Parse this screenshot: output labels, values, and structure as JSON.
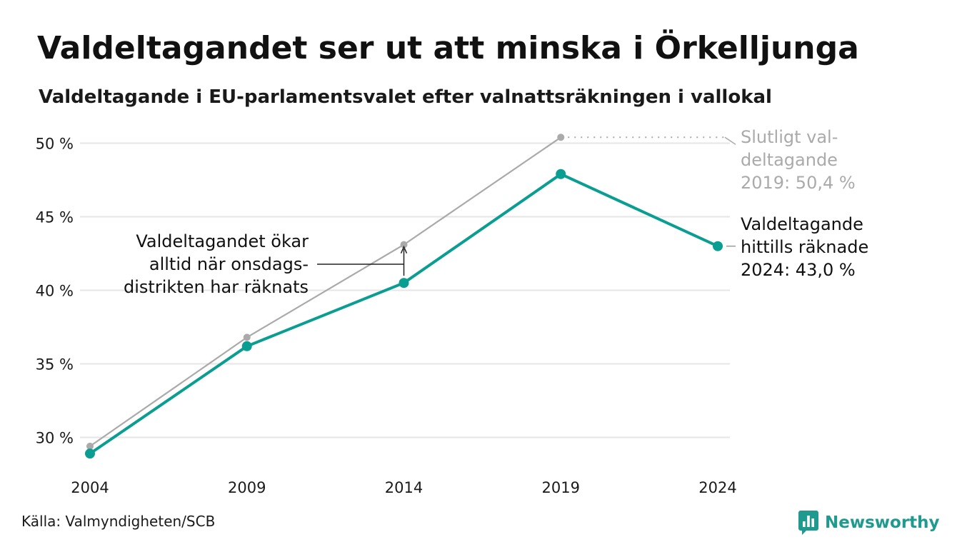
{
  "header": {
    "title": "Valdeltagandet ser ut att minska i Örkelljunga",
    "subtitle": "Valdeltagande i EU-parlamentsvalet efter valnattsräkningen i vallokal"
  },
  "footer": {
    "source": "Källa: Valmyndigheten/SCB",
    "brand": "Newsworthy"
  },
  "colors": {
    "primary_series": "#0a9e93",
    "final_series": "#aaaaaa",
    "grid": "#e6e6e6",
    "text": "#111111",
    "brand": "#1f9a8f"
  },
  "icons": {
    "brand_logo": "newsworthy-logo-icon"
  },
  "chart_data": {
    "type": "line",
    "x": [
      "2004",
      "2009",
      "2014",
      "2019",
      "2024"
    ],
    "y_ticks": [
      "30 %",
      "35 %",
      "40 %",
      "45 %",
      "50 %"
    ],
    "y_tick_values": [
      30,
      35,
      40,
      45,
      50
    ],
    "ylim": [
      28,
      51.5
    ],
    "grid": true,
    "series": [
      {
        "key": "counted",
        "values": [
          28.9,
          36.2,
          40.5,
          47.9,
          43.0
        ],
        "color": "#0a9e93"
      },
      {
        "key": "final",
        "values": [
          29.4,
          36.8,
          43.1,
          50.4,
          null
        ],
        "color": "#aaaaaa"
      }
    ],
    "annotations": {
      "final": [
        "Slutligt val-",
        "deltagande",
        "2019: 50,4 %"
      ],
      "counted": [
        "Valdeltagande",
        "hittills räknade",
        "2024: 43,0 %"
      ],
      "increase": [
        "Valdeltagandet ökar",
        "alltid när onsdags-",
        "distrikten har räknats"
      ]
    }
  }
}
